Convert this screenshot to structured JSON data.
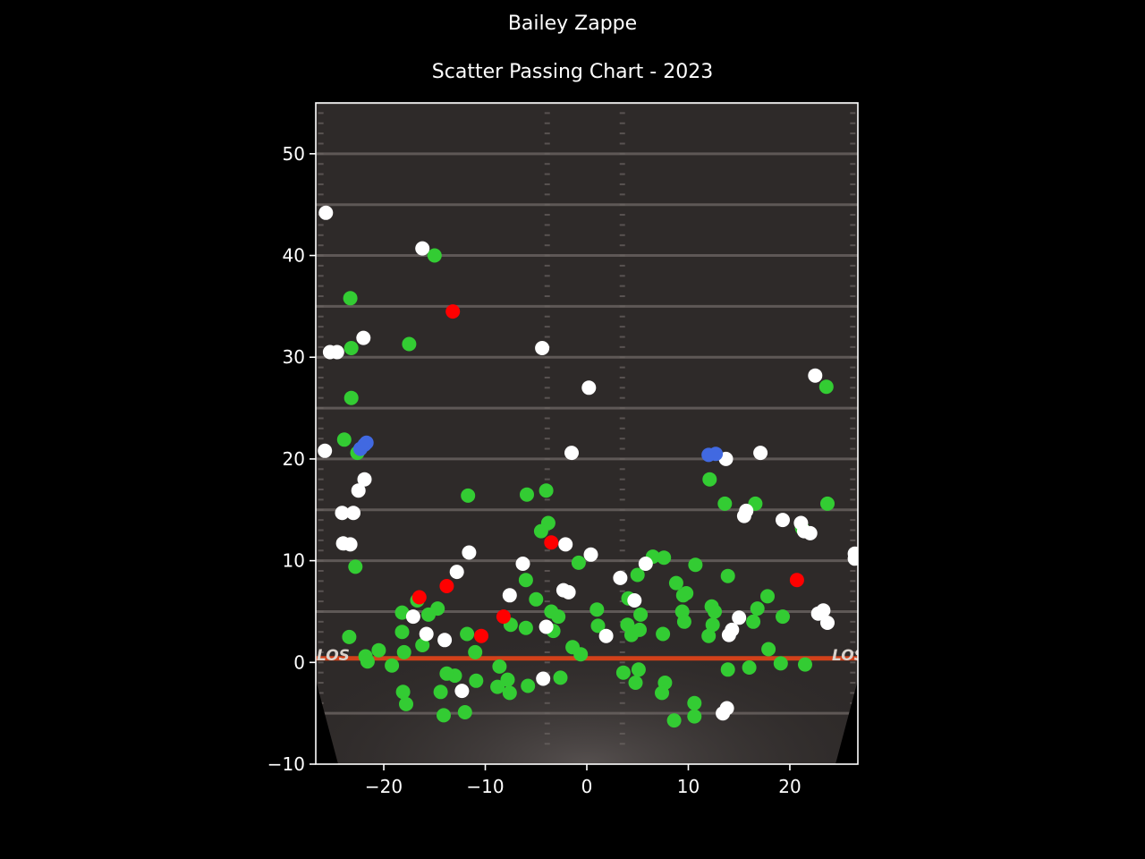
{
  "title": "Bailey Zappe",
  "subtitle": "Scatter Passing Chart - 2023",
  "colors": {
    "background": "#000000",
    "field": "#2e2a29",
    "axes": "#ffffff",
    "los_line": "#d2411a",
    "complete": "#33cc33",
    "incomplete": "#ffffff",
    "interception": "#ff0000",
    "touchdown": "#4169e1"
  },
  "field_labels": {
    "los": "LOS"
  },
  "chart_data": {
    "type": "scatter",
    "title": "Scatter Passing Chart - 2023",
    "xlabel": "",
    "ylabel": "",
    "xlim": [
      -26.7,
      26.7
    ],
    "ylim": [
      -10,
      55
    ],
    "xticks": [
      -20,
      -10,
      0,
      10,
      20
    ],
    "yticks": [
      -10,
      0,
      10,
      20,
      30,
      40,
      50
    ],
    "grid": false,
    "legend": "none",
    "series": [
      {
        "key": "complete",
        "color": "#33cc33",
        "points": [
          [
            -15.0,
            40.0
          ],
          [
            -23.3,
            35.8
          ],
          [
            -17.5,
            31.3
          ],
          [
            -23.2,
            30.9
          ],
          [
            -23.2,
            26.0
          ],
          [
            -23.9,
            21.9
          ],
          [
            -22.6,
            20.6
          ],
          [
            -11.7,
            16.4
          ],
          [
            -5.9,
            16.5
          ],
          [
            -4.0,
            16.9
          ],
          [
            -3.8,
            13.7
          ],
          [
            -4.5,
            12.9
          ],
          [
            -22.8,
            9.4
          ],
          [
            -23.4,
            2.5
          ],
          [
            -0.8,
            9.8
          ],
          [
            -6.0,
            8.1
          ],
          [
            -5.0,
            6.2
          ],
          [
            -16.7,
            6.1
          ],
          [
            -14.7,
            5.3
          ],
          [
            -15.6,
            4.7
          ],
          [
            -18.2,
            4.9
          ],
          [
            -7.5,
            3.7
          ],
          [
            -6.0,
            3.4
          ],
          [
            -3.5,
            5.0
          ],
          [
            -2.8,
            4.5
          ],
          [
            -3.3,
            3.1
          ],
          [
            1.0,
            5.2
          ],
          [
            1.1,
            3.6
          ],
          [
            -1.4,
            1.5
          ],
          [
            -0.6,
            0.8
          ],
          [
            -16.2,
            1.7
          ],
          [
            -18.2,
            3.0
          ],
          [
            -11.8,
            2.8
          ],
          [
            -11.0,
            1.0
          ],
          [
            -18.0,
            1.0
          ],
          [
            -20.5,
            1.2
          ],
          [
            -21.8,
            0.6
          ],
          [
            -21.6,
            0.1
          ],
          [
            -19.2,
            -0.3
          ],
          [
            -8.6,
            -0.4
          ],
          [
            -10.9,
            -1.8
          ],
          [
            -13.0,
            -1.3
          ],
          [
            -13.8,
            -1.1
          ],
          [
            -7.8,
            -1.7
          ],
          [
            -8.8,
            -2.4
          ],
          [
            -7.6,
            -3.0
          ],
          [
            -5.8,
            -2.3
          ],
          [
            -2.6,
            -1.5
          ],
          [
            -18.1,
            -2.9
          ],
          [
            -17.8,
            -4.1
          ],
          [
            -14.4,
            -2.9
          ],
          [
            -12.0,
            -4.9
          ],
          [
            -14.1,
            -5.2
          ],
          [
            6.5,
            10.4
          ],
          [
            7.6,
            10.3
          ],
          [
            5.0,
            8.6
          ],
          [
            4.1,
            6.3
          ],
          [
            8.8,
            7.8
          ],
          [
            9.5,
            6.6
          ],
          [
            9.8,
            6.8
          ],
          [
            9.4,
            5.0
          ],
          [
            9.6,
            4.0
          ],
          [
            5.3,
            4.7
          ],
          [
            4.0,
            3.7
          ],
          [
            4.4,
            2.7
          ],
          [
            5.2,
            3.2
          ],
          [
            7.5,
            2.8
          ],
          [
            12.1,
            18.0
          ],
          [
            13.6,
            15.6
          ],
          [
            16.6,
            15.6
          ],
          [
            23.7,
            15.6
          ],
          [
            13.9,
            8.5
          ],
          [
            10.7,
            9.6
          ],
          [
            12.3,
            5.5
          ],
          [
            12.6,
            5.0
          ],
          [
            12.4,
            3.7
          ],
          [
            12.0,
            2.6
          ],
          [
            17.8,
            6.5
          ],
          [
            16.8,
            5.3
          ],
          [
            16.4,
            4.0
          ],
          [
            19.3,
            4.5
          ],
          [
            17.9,
            1.3
          ],
          [
            19.1,
            -0.1
          ],
          [
            21.5,
            -0.2
          ],
          [
            21.2,
            13.2
          ],
          [
            23.6,
            27.1
          ],
          [
            3.6,
            -1.0
          ],
          [
            4.8,
            -2.0
          ],
          [
            5.1,
            -0.7
          ],
          [
            7.7,
            -2.0
          ],
          [
            7.4,
            -3.0
          ],
          [
            13.9,
            -0.7
          ],
          [
            16.0,
            -0.5
          ],
          [
            10.6,
            -4.0
          ],
          [
            10.6,
            -5.3
          ],
          [
            8.6,
            -5.7
          ]
        ]
      },
      {
        "key": "incomplete",
        "color": "#ffffff",
        "points": [
          [
            -25.7,
            44.2
          ],
          [
            -16.2,
            40.7
          ],
          [
            -25.3,
            30.5
          ],
          [
            -24.6,
            30.5
          ],
          [
            -22.0,
            31.9
          ],
          [
            -4.4,
            30.9
          ],
          [
            0.2,
            27.0
          ],
          [
            -25.8,
            20.8
          ],
          [
            -1.5,
            20.6
          ],
          [
            -21.9,
            18.0
          ],
          [
            -22.5,
            16.9
          ],
          [
            -24.1,
            14.7
          ],
          [
            -23.0,
            14.7
          ],
          [
            -24.0,
            11.7
          ],
          [
            -23.3,
            11.6
          ],
          [
            -11.6,
            10.8
          ],
          [
            -2.1,
            11.6
          ],
          [
            -12.8,
            8.9
          ],
          [
            -6.3,
            9.7
          ],
          [
            0.4,
            10.6
          ],
          [
            -2.3,
            7.1
          ],
          [
            -1.8,
            6.9
          ],
          [
            -7.6,
            6.6
          ],
          [
            -17.1,
            4.5
          ],
          [
            -15.8,
            2.8
          ],
          [
            -14.0,
            2.2
          ],
          [
            -4.0,
            3.5
          ],
          [
            1.9,
            2.6
          ],
          [
            3.3,
            8.3
          ],
          [
            5.8,
            9.7
          ],
          [
            4.7,
            6.1
          ],
          [
            -12.3,
            -2.8
          ],
          [
            -4.3,
            -1.6
          ],
          [
            13.7,
            20.0
          ],
          [
            17.1,
            20.6
          ],
          [
            15.5,
            14.4
          ],
          [
            15.7,
            14.9
          ],
          [
            19.3,
            14.0
          ],
          [
            21.1,
            13.7
          ],
          [
            21.4,
            12.9
          ],
          [
            22.0,
            12.7
          ],
          [
            22.5,
            28.2
          ],
          [
            26.4,
            10.7
          ],
          [
            26.4,
            10.2
          ],
          [
            15.0,
            4.4
          ],
          [
            14.3,
            3.2
          ],
          [
            14.0,
            2.7
          ],
          [
            22.8,
            4.8
          ],
          [
            23.3,
            5.1
          ],
          [
            23.7,
            3.9
          ],
          [
            13.8,
            -4.5
          ],
          [
            13.4,
            -5.0
          ]
        ]
      },
      {
        "key": "interception",
        "color": "#ff0000",
        "points": [
          [
            -13.2,
            34.5
          ],
          [
            -3.5,
            11.8
          ],
          [
            -16.5,
            6.4
          ],
          [
            -13.8,
            7.5
          ],
          [
            -8.2,
            4.5
          ],
          [
            -10.4,
            2.6
          ],
          [
            20.7,
            8.1
          ]
        ]
      },
      {
        "key": "touchdown",
        "color": "#4169e1",
        "points": [
          [
            -22.3,
            21.0
          ],
          [
            -21.9,
            21.4
          ],
          [
            -21.7,
            21.6
          ],
          [
            12.0,
            20.4
          ],
          [
            12.7,
            20.5
          ]
        ]
      }
    ]
  }
}
